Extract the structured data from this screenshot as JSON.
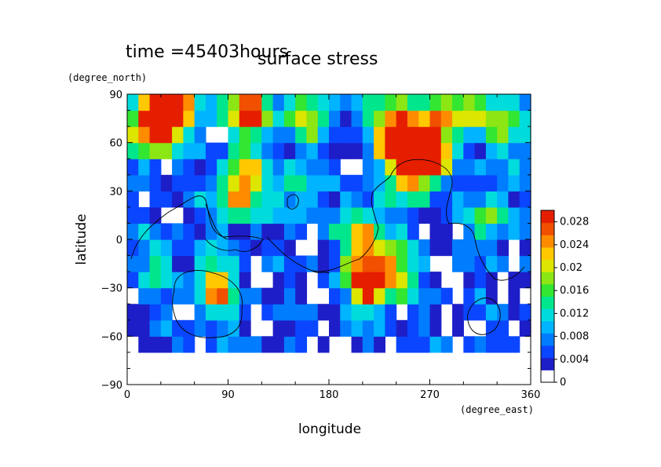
{
  "chart_data": {
    "type": "heatmap",
    "title": "surface stress",
    "time_label": "time =45403hours",
    "xlabel": "longitude",
    "ylabel": "latitude",
    "x_unit": "(degree_east)",
    "y_unit": "(degree_north)",
    "xlim": [
      0,
      360
    ],
    "ylim": [
      -90,
      90
    ],
    "x_ticks": [
      0,
      90,
      180,
      270,
      360
    ],
    "y_ticks": [
      -90,
      -60,
      -30,
      0,
      30,
      60,
      90
    ],
    "x_tick_labels": [
      "0",
      "90",
      "180",
      "270",
      "360"
    ],
    "y_tick_labels": [
      "−90",
      "−60",
      "−30",
      "0",
      "30",
      "60",
      "90"
    ],
    "colorbar": {
      "ticks": [
        "0",
        "0.004",
        "0.008",
        "0.012",
        "0.016",
        "0.02",
        "0.024",
        "0.028"
      ],
      "min": 0,
      "max": 0.03
    },
    "colormap": [
      "#ffffff",
      "#1e1ec8",
      "#0a46ff",
      "#007dff",
      "#00b4ff",
      "#00dcdc",
      "#00e68c",
      "#32e632",
      "#8ce614",
      "#dce600",
      "#ffc800",
      "#ff8c00",
      "#f05000",
      "#e61e00"
    ],
    "stress_hotspots": [
      {
        "lon": 40,
        "lat": 80,
        "amp": 0.025
      },
      {
        "lon": 20,
        "lat": 68,
        "amp": 0.022
      },
      {
        "lon": 110,
        "lat": 80,
        "amp": 0.02
      },
      {
        "lon": 240,
        "lat": 63,
        "amp": 0.028
      },
      {
        "lon": 270,
        "lat": 58,
        "amp": 0.026
      },
      {
        "lon": 255,
        "lat": 45,
        "amp": 0.022
      },
      {
        "lon": 300,
        "lat": 82,
        "amp": 0.012
      },
      {
        "lon": 160,
        "lat": 75,
        "amp": 0.01
      },
      {
        "lon": 210,
        "lat": 5,
        "amp": 0.016
      },
      {
        "lon": 215,
        "lat": -25,
        "amp": 0.026
      },
      {
        "lon": 240,
        "lat": -18,
        "amp": 0.014
      },
      {
        "lon": 80,
        "lat": -30,
        "amp": 0.018
      },
      {
        "lon": 95,
        "lat": 25,
        "amp": 0.012
      },
      {
        "lon": 105,
        "lat": 38,
        "amp": 0.014
      },
      {
        "lon": 325,
        "lat": 15,
        "amp": 0.012
      },
      {
        "lon": 30,
        "lat": -15,
        "amp": 0.008
      },
      {
        "lon": 150,
        "lat": 30,
        "amp": 0.01
      },
      {
        "lon": 330,
        "lat": 65,
        "amp": 0.01
      }
    ]
  }
}
